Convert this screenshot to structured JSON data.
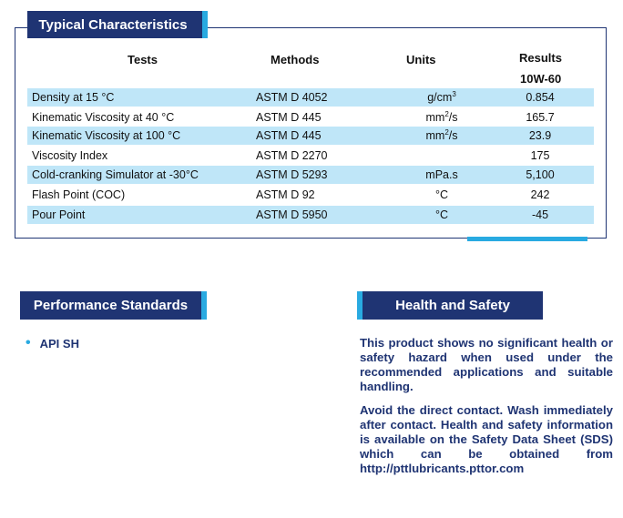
{
  "typical": {
    "title": "Typical Characteristics",
    "headers": {
      "tests": "Tests",
      "methods": "Methods",
      "units": "Units",
      "results": "Results",
      "grade": "10W-60"
    },
    "rows": [
      {
        "test": "Density at 15 °C",
        "method": "ASTM D 4052",
        "unit_base": "g/cm",
        "unit_sup": "3",
        "result": "0.854"
      },
      {
        "test": "Kinematic Viscosity at 40 °C",
        "method": "ASTM D 445",
        "unit_base": "mm",
        "unit_sup": "2",
        "unit_tail": "/s",
        "result": "165.7"
      },
      {
        "test": "Kinematic Viscosity at 100 °C",
        "method": "ASTM D 445",
        "unit_base": "mm",
        "unit_sup": "2",
        "unit_tail": "/s",
        "result": "23.9"
      },
      {
        "test": "Viscosity Index",
        "method": "ASTM D 2270",
        "unit_base": "",
        "result": "175"
      },
      {
        "test": "Cold-cranking Simulator at -30°C",
        "method": "ASTM D 5293",
        "unit_base": "mPa.s",
        "result": "5,100"
      },
      {
        "test": "Flash Point (COC)",
        "method": "ASTM D 92",
        "unit_base": "°C",
        "result": "242"
      },
      {
        "test": "Pour Point",
        "method": "ASTM D 5950",
        "unit_base": "°C",
        "result": "-45"
      }
    ]
  },
  "performance": {
    "title": "Performance Standards",
    "items": [
      "API SH"
    ]
  },
  "health": {
    "title": "Health and Safety",
    "paragraph1": "This product shows no significant health or safety hazard when used under the recommended applications and suitable handling.",
    "paragraph2": "Avoid the direct contact. Wash immediately after contact. Health and safety information is available on the Safety Data Sheet (SDS) which can be obtained from http://pttlubricants.pttor.com"
  },
  "colors": {
    "navy": "#1f3473",
    "accent": "#29aae1",
    "row_shade": "#bfe6f8"
  }
}
